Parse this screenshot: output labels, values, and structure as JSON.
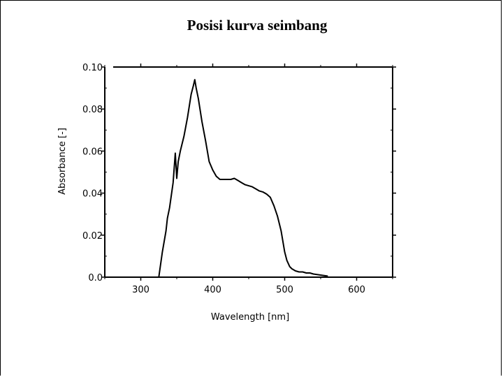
{
  "chart_data": {
    "type": "line",
    "title": "Posisi kurva seimbang",
    "xlabel": "Wavelength [nm]",
    "ylabel": "Absorbance [-]",
    "xlim": [
      250,
      650
    ],
    "ylim": [
      0,
      0.1
    ],
    "x_ticks": [
      300,
      400,
      500,
      600
    ],
    "x_tick_labels": [
      "300",
      "400",
      "500",
      "600"
    ],
    "y_ticks": [
      0,
      0.02,
      0.04,
      0.06,
      0.08,
      0.1
    ],
    "y_tick_labels": [
      "0.0",
      "0.02",
      "0.04",
      "0.06",
      "0.08",
      "0.10"
    ],
    "grid": false,
    "series": [
      {
        "x": [
          325,
          330,
          335,
          337,
          340,
          345,
          348,
          350,
          352,
          355,
          360,
          365,
          370,
          373,
          375,
          377,
          380,
          385,
          390,
          395,
          400,
          405,
          410,
          415,
          420,
          425,
          430,
          435,
          440,
          445,
          450,
          455,
          460,
          465,
          470,
          475,
          480,
          485,
          490,
          495,
          500,
          503,
          507,
          510,
          515,
          520,
          522,
          525,
          530,
          535,
          540,
          550,
          560
        ],
        "y": [
          0.0,
          0.012,
          0.022,
          0.028,
          0.033,
          0.045,
          0.059,
          0.047,
          0.055,
          0.06,
          0.067,
          0.076,
          0.087,
          0.091,
          0.094,
          0.09,
          0.085,
          0.074,
          0.065,
          0.055,
          0.051,
          0.048,
          0.0465,
          0.0465,
          0.0465,
          0.0465,
          0.047,
          0.046,
          0.045,
          0.044,
          0.0435,
          0.043,
          0.042,
          0.041,
          0.0405,
          0.0395,
          0.038,
          0.034,
          0.029,
          0.022,
          0.012,
          0.008,
          0.005,
          0.004,
          0.003,
          0.0025,
          0.0025,
          0.0025,
          0.002,
          0.002,
          0.0015,
          0.001,
          0.0005
        ]
      }
    ]
  }
}
